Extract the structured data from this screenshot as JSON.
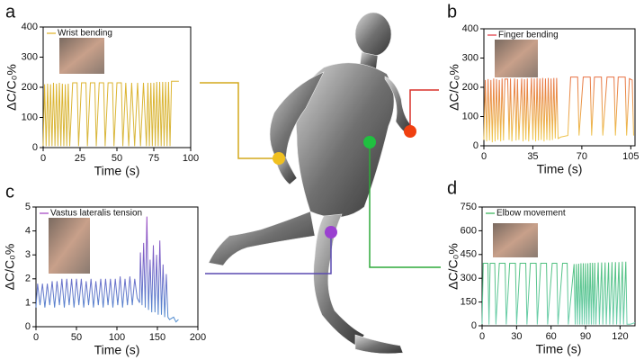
{
  "chart_data": [
    {
      "type": "line",
      "panel": "a",
      "xlabel": "Time (s)",
      "ylabel": "ΔC/C₀%",
      "xlim": [
        0,
        100
      ],
      "xticks": [
        0,
        25,
        50,
        75,
        100
      ],
      "ylim": [
        0,
        400
      ],
      "yticks": [
        0,
        100,
        200,
        300,
        400
      ],
      "x": [
        0,
        1,
        2,
        3,
        4,
        5,
        6,
        7,
        8,
        9,
        10,
        11,
        12,
        13,
        14,
        15,
        16,
        17,
        18,
        20,
        23,
        24,
        26,
        29,
        30,
        32,
        35,
        36,
        38,
        41,
        42,
        44,
        47,
        48,
        50,
        53,
        54,
        56,
        58,
        60,
        62,
        64,
        66,
        68,
        70,
        71,
        72,
        73,
        74,
        75,
        76,
        77,
        78,
        79,
        80,
        81,
        82,
        83,
        84,
        85,
        86,
        87,
        92
      ],
      "series": [
        {
          "name": "Wrist bending",
          "color": [
            "#e0b020",
            "#d8b840"
          ],
          "values": [
            5,
            210,
            5,
            212,
            5,
            210,
            5,
            215,
            5,
            212,
            5,
            215,
            5,
            212,
            5,
            210,
            5,
            212,
            5,
            215,
            215,
            5,
            215,
            215,
            5,
            215,
            215,
            5,
            215,
            215,
            5,
            215,
            215,
            5,
            215,
            215,
            5,
            215,
            5,
            215,
            5,
            215,
            5,
            215,
            5,
            215,
            5,
            215,
            5,
            215,
            5,
            218,
            5,
            218,
            5,
            218,
            5,
            218,
            5,
            218,
            5,
            220,
            220
          ]
        }
      ]
    },
    {
      "type": "line",
      "panel": "b",
      "xlabel": "Time (s)",
      "ylabel": "ΔC/C₀%",
      "xlim": [
        0,
        108
      ],
      "xticks": [
        0,
        35,
        70,
        105
      ],
      "ylim": [
        0,
        400
      ],
      "yticks": [
        0,
        100,
        200,
        300,
        400
      ],
      "x": [
        0,
        1,
        2,
        3,
        4,
        5,
        6,
        7,
        8,
        9,
        10,
        11,
        12,
        13,
        14,
        15,
        17,
        18,
        19,
        20,
        22,
        23,
        24,
        25,
        27,
        28,
        29,
        30,
        31,
        32,
        34,
        35,
        36,
        37,
        38,
        39,
        40,
        41,
        42,
        43,
        44,
        45,
        46,
        47,
        48,
        49,
        50,
        51,
        52,
        53,
        55,
        60,
        62,
        67,
        68,
        71,
        76,
        77,
        79,
        84,
        85,
        88,
        93,
        94,
        96,
        101,
        102,
        104,
        106,
        107
      ],
      "series": [
        {
          "name": "Finger bending",
          "color": [
            "#e0303a",
            "#f0d050"
          ],
          "values": [
            20,
            225,
            15,
            228,
            18,
            225,
            12,
            230,
            15,
            228,
            20,
            225,
            15,
            230,
            18,
            228,
            228,
            20,
            230,
            15,
            230,
            18,
            228,
            20,
            230,
            15,
            228,
            20,
            230,
            15,
            232,
            20,
            230,
            15,
            232,
            18,
            230,
            20,
            232,
            15,
            230,
            20,
            232,
            18,
            230,
            20,
            232,
            25,
            232,
            25,
            30,
            35,
            235,
            235,
            35,
            235,
            235,
            35,
            235,
            235,
            35,
            235,
            235,
            35,
            235,
            235,
            35,
            230,
            225,
            35
          ]
        }
      ]
    },
    {
      "type": "line",
      "panel": "c",
      "xlabel": "Time (s)",
      "ylabel": "ΔC/C₀%",
      "xlim": [
        0,
        200
      ],
      "xticks": [
        0,
        50,
        100,
        150,
        200
      ],
      "ylim": [
        0,
        5
      ],
      "yticks": [
        0,
        1,
        2,
        3,
        4,
        5
      ],
      "x": [
        0,
        2,
        5,
        8,
        11,
        14,
        17,
        20,
        23,
        26,
        29,
        32,
        35,
        38,
        41,
        44,
        47,
        50,
        53,
        56,
        59,
        62,
        65,
        68,
        71,
        74,
        77,
        80,
        83,
        86,
        89,
        92,
        95,
        98,
        101,
        104,
        107,
        110,
        113,
        116,
        119,
        122,
        125,
        128,
        129,
        131,
        133,
        135,
        137,
        139,
        141,
        143,
        145,
        147,
        149,
        151,
        153,
        155,
        157,
        159,
        161,
        163,
        165,
        170,
        173,
        176
      ],
      "series": [
        {
          "name": "Vastus lateralis tension",
          "color": [
            "#a040c0",
            "#4a90d0"
          ],
          "values": [
            0.8,
            1.8,
            0.9,
            1.8,
            0.8,
            1.8,
            0.9,
            1.9,
            0.8,
            1.9,
            0.9,
            2.0,
            0.8,
            2.0,
            0.9,
            2.0,
            0.8,
            2.0,
            0.9,
            2.0,
            0.8,
            1.9,
            0.9,
            2.0,
            0.8,
            1.9,
            0.9,
            2.0,
            0.8,
            2.0,
            0.9,
            2.0,
            0.8,
            2.0,
            0.9,
            2.1,
            0.8,
            2.0,
            0.9,
            2.1,
            0.9,
            2.0,
            1.2,
            1.0,
            3.1,
            0.9,
            3.5,
            0.8,
            4.6,
            0.7,
            2.8,
            0.6,
            3.4,
            0.6,
            3.0,
            0.5,
            3.6,
            0.5,
            2.6,
            0.4,
            2.2,
            0.4,
            0.3,
            0.4,
            0.2,
            0.3
          ]
        }
      ]
    },
    {
      "type": "line",
      "panel": "d",
      "xlabel": "Time (s)",
      "ylabel": "ΔC/C₀%",
      "xlim": [
        0,
        133
      ],
      "xticks": [
        0,
        30,
        60,
        90,
        120
      ],
      "ylim": [
        0,
        750
      ],
      "yticks": [
        0,
        150,
        300,
        450,
        600,
        750
      ],
      "x": [
        0,
        1,
        5,
        6,
        7,
        11,
        12,
        15,
        20,
        21,
        24,
        29,
        30,
        33,
        38,
        39,
        42,
        47,
        48,
        51,
        56,
        57,
        61,
        65,
        66,
        70,
        74,
        75,
        80,
        81,
        82,
        83,
        84,
        85,
        86,
        87,
        88,
        89,
        90,
        91,
        92,
        93,
        94,
        95,
        96,
        97,
        98,
        99,
        101,
        102,
        104,
        105,
        107,
        108,
        110,
        111,
        113,
        114,
        116,
        117,
        119,
        120,
        122,
        123,
        125,
        126,
        129,
        133
      ],
      "series": [
        {
          "name": "Elbow movement",
          "color": [
            "#30b050",
            "#70d0b0"
          ],
          "values": [
            10,
            395,
            395,
            8,
            395,
            395,
            8,
            395,
            395,
            8,
            395,
            395,
            8,
            395,
            395,
            8,
            395,
            395,
            8,
            395,
            395,
            8,
            395,
            395,
            8,
            395,
            395,
            8,
            390,
            8,
            390,
            8,
            392,
            8,
            395,
            8,
            395,
            8,
            395,
            8,
            395,
            8,
            398,
            8,
            398,
            8,
            398,
            8,
            400,
            8,
            400,
            8,
            400,
            8,
            400,
            8,
            402,
            8,
            402,
            8,
            402,
            8,
            405,
            8,
            405,
            10,
            10,
            20
          ]
        }
      ]
    }
  ]
}
